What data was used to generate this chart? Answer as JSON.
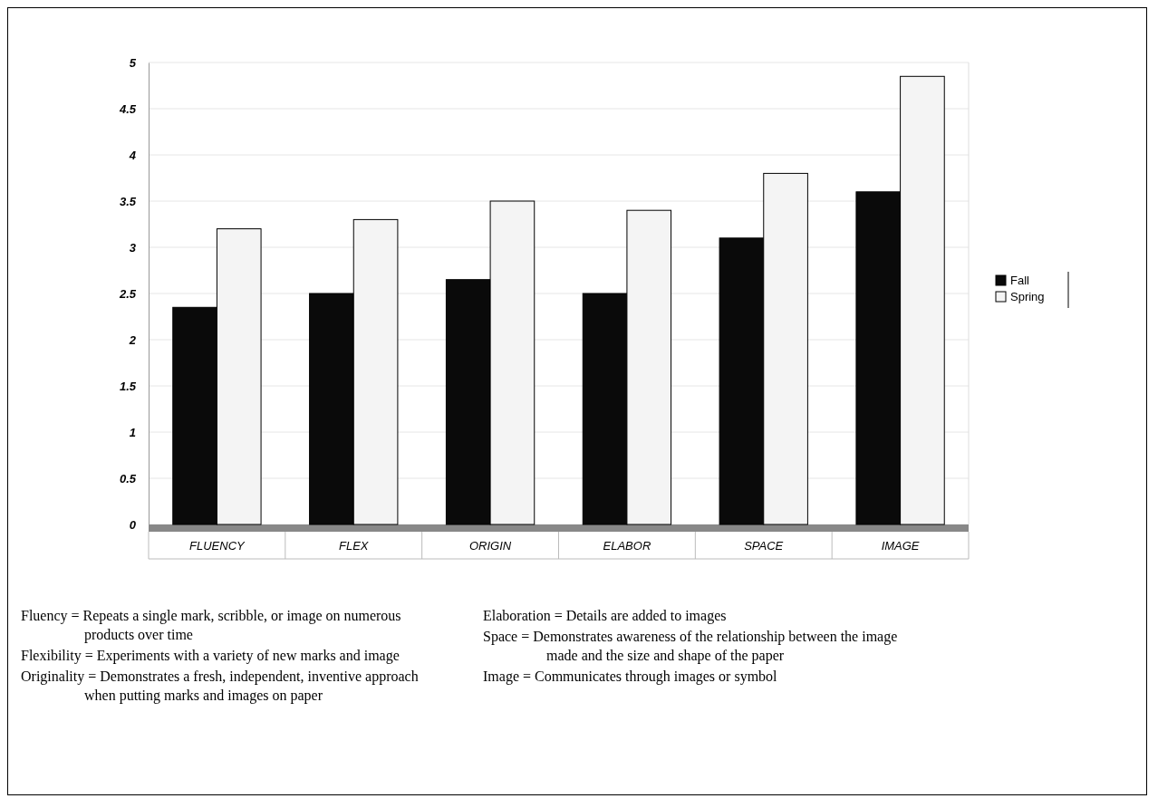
{
  "chart_data": {
    "type": "bar",
    "categories": [
      "FLUENCY",
      "FLEX",
      "ORIGIN",
      "ELABOR",
      "SPACE",
      "IMAGE"
    ],
    "series": [
      {
        "name": "Fall",
        "color": "#0a0a0a",
        "values": [
          2.35,
          2.5,
          2.65,
          2.5,
          3.1,
          3.6
        ]
      },
      {
        "name": "Spring",
        "color": "#f4f4f4",
        "values": [
          3.2,
          3.3,
          3.5,
          3.4,
          3.8,
          4.85
        ]
      }
    ],
    "ylim": [
      0,
      5
    ],
    "yticks": [
      0,
      0.5,
      1,
      1.5,
      2,
      2.5,
      3,
      3.5,
      4,
      4.5,
      5
    ],
    "grid": "y",
    "legend": "right",
    "annotations": [
      "Fluency = Repeats a single mark, scribble, or image on numerous products over time",
      "Flexibility = Experiments with a variety of new marks and image",
      "Originality = Demonstrates a fresh, independent, inventive approach when putting marks and images on paper",
      "Elaboration = Details are added to images",
      "Space = Demonstrates awareness of the relationship between the image made and the size and shape of the paper",
      "Image = Communicates through images or symbol"
    ]
  }
}
